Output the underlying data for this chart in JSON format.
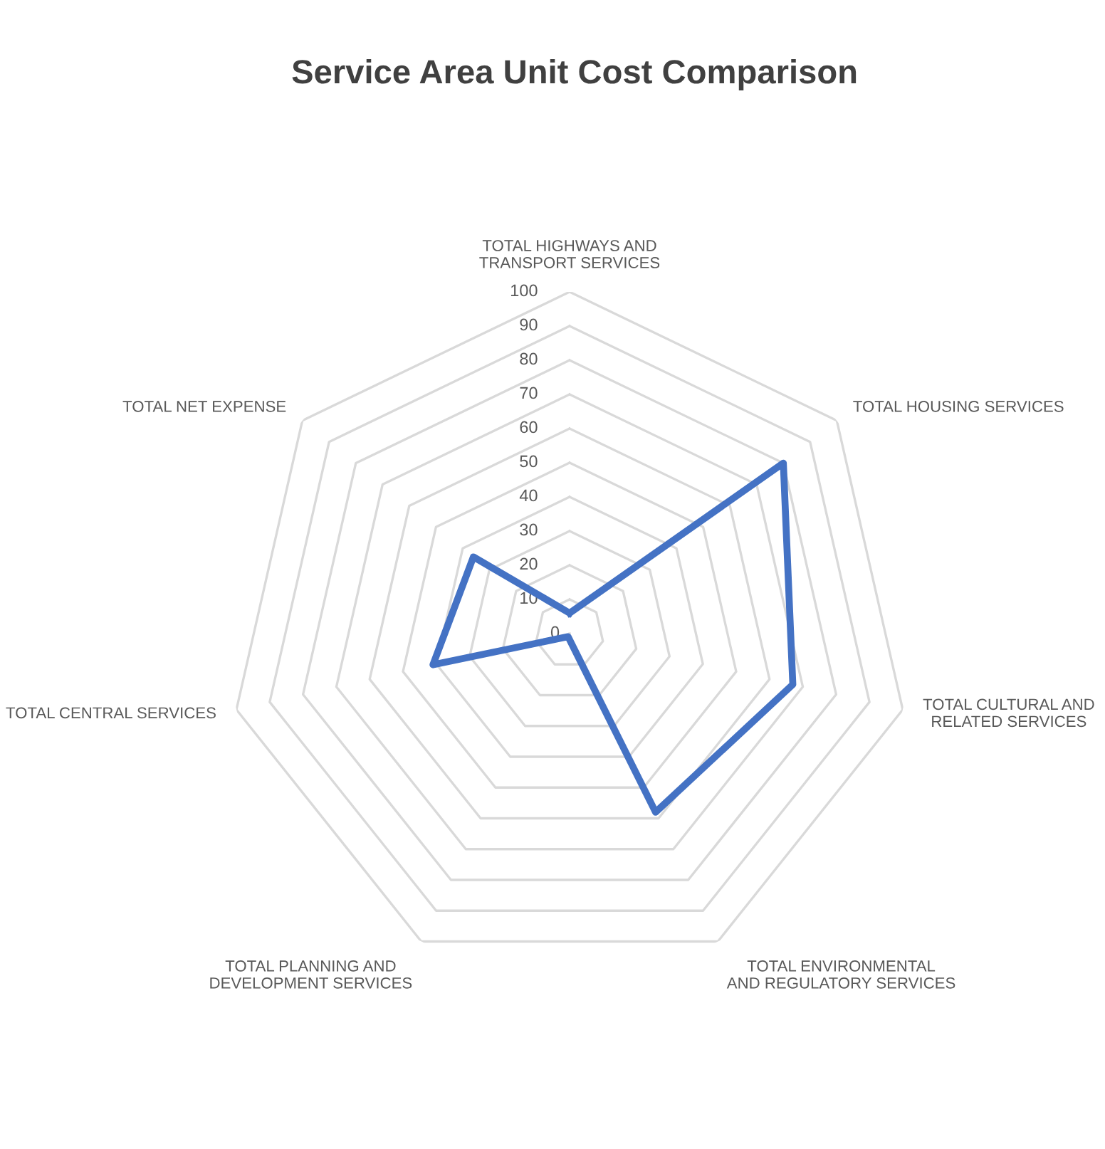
{
  "chart_data": {
    "type": "radar",
    "title": "Service Area Unit Cost Comparison",
    "categories": [
      "TOTAL HIGHWAYS AND\nTRANSPORT SERVICES",
      "TOTAL HOUSING SERVICES",
      "TOTAL CULTURAL AND\nRELATED SERVICES",
      "TOTAL ENVIRONMENTAL\nAND REGULATORY SERVICES",
      "TOTAL PLANNING AND\nDEVELOPMENT SERVICES",
      "TOTAL CENTRAL SERVICES",
      "TOTAL NET EXPENSE"
    ],
    "series": [
      {
        "color": "#4472c4",
        "values": [
          6,
          80,
          67,
          58,
          1,
          41,
          36
        ]
      }
    ],
    "ylim": [
      0,
      100
    ],
    "yticks": [
      0,
      10,
      20,
      30,
      40,
      50,
      60,
      70,
      80,
      90,
      100
    ],
    "grid": true,
    "legend": false,
    "marker": "none",
    "line_style": "solid"
  }
}
